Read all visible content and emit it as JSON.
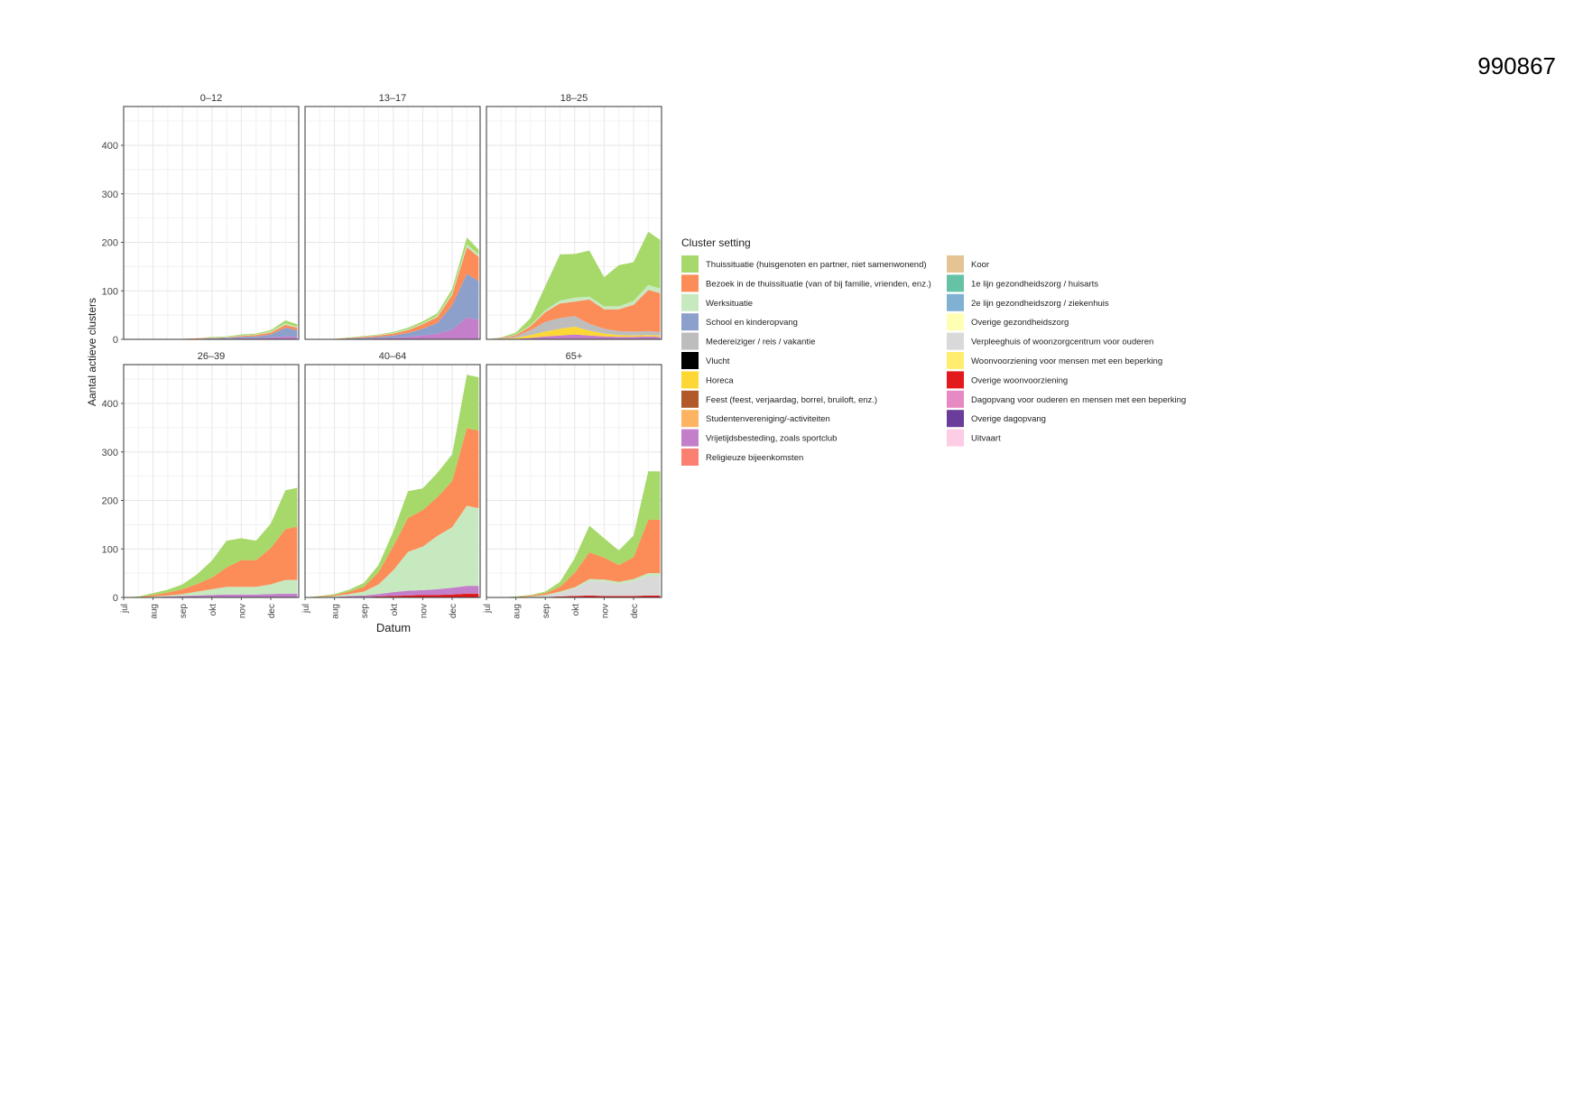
{
  "document_id": "990867",
  "chart_data": {
    "type": "area",
    "stacked": true,
    "facets": [
      "0–12",
      "13–17",
      "18–25",
      "26–39",
      "40–64",
      "65+"
    ],
    "facet_layout": "2 rows x 3 columns",
    "ylabel": "Aantal actieve clusters",
    "xlabel": "Datum",
    "ylim": [
      0,
      480
    ],
    "yticks": [
      0,
      100,
      200,
      300,
      400
    ],
    "x_ticks": [
      "jul",
      "aug",
      "sep",
      "okt",
      "nov",
      "dec"
    ],
    "x_range_months": [
      "jul",
      "dec"
    ],
    "grid": true,
    "legend": {
      "title": "Cluster setting",
      "placement": "right",
      "entries": [
        {
          "name": "Thuissituatie (huisgenoten en partner, niet samenwonend)",
          "color": "#a6d96a"
        },
        {
          "name": "Bezoek in de thuissituatie (van of bij familie, vrienden, enz.)",
          "color": "#fc8d59"
        },
        {
          "name": "Werksituatie",
          "color": "#c7e9c0"
        },
        {
          "name": "School en kinderopvang",
          "color": "#8da0cb"
        },
        {
          "name": "Medereiziger / reis / vakantie",
          "color": "#bdbdbd"
        },
        {
          "name": "Vlucht",
          "color": "#000000"
        },
        {
          "name": "Horeca",
          "color": "#fdd835"
        },
        {
          "name": "Feest (feest, verjaardag, borrel, bruiloft, enz.)",
          "color": "#b15928"
        },
        {
          "name": "Studentenvereniging/-activiteiten",
          "color": "#fdb462"
        },
        {
          "name": "Vrijetijdsbesteding, zoals sportclub",
          "color": "#c37fc9"
        },
        {
          "name": "Religieuze bijeenkomsten",
          "color": "#fb8072"
        },
        {
          "name": "Koor",
          "color": "#e5c494"
        },
        {
          "name": "1e lijn gezondheidszorg / huisarts",
          "color": "#66c2a5"
        },
        {
          "name": "2e lijn gezondheidszorg / ziekenhuis",
          "color": "#80b1d3"
        },
        {
          "name": "Overige gezondheidszorg",
          "color": "#ffffb3"
        },
        {
          "name": "Verpleeghuis of woonzorgcentrum voor ouderen",
          "color": "#d9d9d9"
        },
        {
          "name": "Woonvoorziening voor mensen met een beperking",
          "color": "#ffed6f"
        },
        {
          "name": "Overige woonvoorziening",
          "color": "#e31a1c"
        },
        {
          "name": "Dagopvang voor ouderen en mensen met een beperking",
          "color": "#e78ac3"
        },
        {
          "name": "Overige dagopvang",
          "color": "#6a3d9a"
        },
        {
          "name": "Uitvaart",
          "color": "#fccde5"
        }
      ]
    },
    "x_points_months": [
      0,
      0.5,
      1,
      1.5,
      2,
      2.5,
      3,
      3.5,
      4,
      4.5,
      5,
      5.5,
      5.9
    ],
    "panels": [
      {
        "facet": "0–12",
        "series": [
          {
            "name": "Vrijetijdsbesteding, zoals sportclub",
            "values": [
              0,
              0,
              0,
              0,
              0,
              0,
              1,
              1,
              2,
              2,
              4,
              6,
              5
            ]
          },
          {
            "name": "School en kinderopvang",
            "values": [
              0,
              0,
              0,
              0,
              1,
              1,
              1,
              2,
              3,
              4,
              6,
              18,
              14
            ]
          },
          {
            "name": "Bezoek in de thuissituatie (van of bij familie, vrienden, enz.)",
            "values": [
              0,
              0,
              0,
              0,
              0,
              1,
              1,
              1,
              2,
              3,
              4,
              6,
              5
            ]
          },
          {
            "name": "Werksituatie",
            "values": [
              0,
              0,
              0,
              0,
              0,
              0,
              1,
              1,
              1,
              1,
              2,
              3,
              2
            ]
          },
          {
            "name": "Thuissituatie (huisgenoten en partner, niet samenwonend)",
            "values": [
              0,
              0,
              0,
              0,
              0,
              0,
              1,
              1,
              2,
              2,
              3,
              6,
              5
            ]
          }
        ]
      },
      {
        "facet": "13–17",
        "series": [
          {
            "name": "Vrijetijdsbesteding, zoals sportclub",
            "values": [
              0,
              0,
              0,
              1,
              1,
              2,
              3,
              5,
              8,
              12,
              20,
              45,
              40
            ]
          },
          {
            "name": "School en kinderopvang",
            "values": [
              0,
              0,
              0,
              1,
              2,
              3,
              5,
              8,
              14,
              22,
              50,
              90,
              80
            ]
          },
          {
            "name": "Bezoek in de thuissituatie (van of bij familie, vrienden, enz.)",
            "values": [
              0,
              0,
              1,
              1,
              2,
              3,
              4,
              6,
              9,
              12,
              22,
              55,
              50
            ]
          },
          {
            "name": "Werksituatie",
            "values": [
              0,
              0,
              0,
              0,
              1,
              1,
              1,
              2,
              2,
              3,
              4,
              6,
              5
            ]
          },
          {
            "name": "Thuissituatie (huisgenoten en partner, niet samenwonend)",
            "values": [
              0,
              0,
              0,
              1,
              1,
              1,
              2,
              3,
              4,
              5,
              8,
              14,
              10
            ]
          }
        ]
      },
      {
        "facet": "18–25",
        "series": [
          {
            "name": "Vrijetijdsbesteding, zoals sportclub",
            "values": [
              0,
              0,
              1,
              3,
              6,
              8,
              10,
              8,
              6,
              5,
              5,
              6,
              5
            ]
          },
          {
            "name": "Horeca",
            "values": [
              0,
              1,
              2,
              6,
              10,
              14,
              16,
              10,
              6,
              4,
              3,
              3,
              3
            ]
          },
          {
            "name": "Medereiziger / reis / vakantie",
            "values": [
              0,
              1,
              3,
              10,
              20,
              22,
              22,
              14,
              10,
              8,
              8,
              8,
              7
            ]
          },
          {
            "name": "Bezoek in de thuissituatie (van of bij familie, vrienden, enz.)",
            "values": [
              0,
              1,
              3,
              8,
              20,
              30,
              30,
              50,
              40,
              45,
              55,
              85,
              80
            ]
          },
          {
            "name": "Werksituatie",
            "values": [
              0,
              0,
              1,
              2,
              4,
              6,
              8,
              6,
              6,
              6,
              8,
              10,
              10
            ]
          },
          {
            "name": "Thuissituatie (huisgenoten en partner, niet samenwonend)",
            "values": [
              0,
              1,
              4,
              15,
              50,
              95,
              90,
              95,
              60,
              85,
              80,
              110,
              100
            ]
          }
        ]
      },
      {
        "facet": "26–39",
        "series": [
          {
            "name": "Vrijetijdsbesteding, zoals sportclub",
            "values": [
              0,
              0,
              1,
              2,
              3,
              4,
              5,
              6,
              6,
              6,
              7,
              8,
              8
            ]
          },
          {
            "name": "Werksituatie",
            "values": [
              0,
              0,
              1,
              2,
              4,
              8,
              12,
              16,
              16,
              16,
              20,
              28,
              28
            ]
          },
          {
            "name": "Bezoek in de thuissituatie (van of bij familie, vrienden, enz.)",
            "values": [
              0,
              1,
              3,
              6,
              10,
              16,
              24,
              40,
              55,
              55,
              75,
              105,
              110
            ]
          },
          {
            "name": "Thuissituatie (huisgenoten en partner, niet samenwonend)",
            "values": [
              0,
              1,
              4,
              6,
              10,
              20,
              35,
              55,
              45,
              40,
              50,
              80,
              80
            ]
          }
        ]
      },
      {
        "facet": "40–64",
        "series": [
          {
            "name": "Overige woonvoorziening",
            "values": [
              0,
              0,
              0,
              1,
              1,
              2,
              3,
              4,
              5,
              5,
              6,
              8,
              8
            ]
          },
          {
            "name": "Vrijetijdsbesteding, zoals sportclub",
            "values": [
              0,
              0,
              1,
              2,
              3,
              5,
              8,
              10,
              10,
              12,
              14,
              16,
              16
            ]
          },
          {
            "name": "Werksituatie",
            "values": [
              0,
              1,
              2,
              4,
              8,
              20,
              45,
              80,
              90,
              110,
              125,
              165,
              160
            ]
          },
          {
            "name": "Bezoek in de thuissituatie (van of bij familie, vrienden, enz.)",
            "values": [
              0,
              1,
              2,
              5,
              10,
              25,
              50,
              70,
              75,
              80,
              95,
              160,
              160
            ]
          },
          {
            "name": "Thuissituatie (huisgenoten en partner, niet samenwonend)",
            "values": [
              0,
              1,
              2,
              4,
              8,
              15,
              30,
              55,
              45,
              50,
              55,
              110,
              110
            ]
          }
        ]
      },
      {
        "facet": "65+",
        "series": [
          {
            "name": "Overige woonvoorziening",
            "values": [
              0,
              0,
              0,
              0,
              1,
              2,
              3,
              4,
              3,
              3,
              3,
              4,
              4
            ]
          },
          {
            "name": "Verpleeghuis of woonzorgcentrum voor ouderen",
            "values": [
              0,
              0,
              0,
              1,
              3,
              8,
              15,
              30,
              30,
              25,
              30,
              40,
              40
            ]
          },
          {
            "name": "Werksituatie",
            "values": [
              0,
              0,
              0,
              1,
              1,
              2,
              3,
              4,
              4,
              4,
              5,
              6,
              6
            ]
          },
          {
            "name": "Bezoek in de thuissituatie (van of bij familie, vrienden, enz.)",
            "values": [
              0,
              0,
              1,
              2,
              4,
              10,
              30,
              55,
              45,
              35,
              45,
              110,
              110
            ]
          },
          {
            "name": "Thuissituatie (huisgenoten en partner, niet samenwonend)",
            "values": [
              0,
              0,
              1,
              1,
              3,
              10,
              30,
              55,
              40,
              30,
              45,
              100,
              100
            ]
          }
        ]
      }
    ]
  }
}
